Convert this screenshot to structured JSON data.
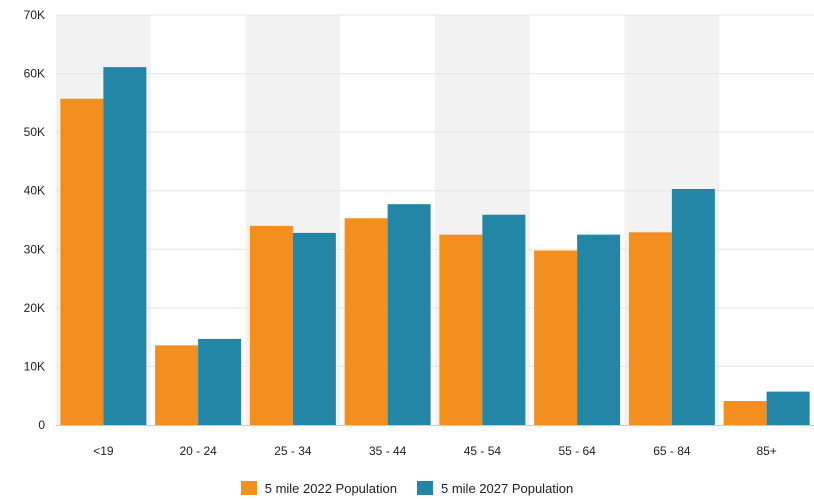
{
  "chart_data": {
    "type": "bar",
    "categories": [
      "<19",
      "20 - 24",
      "25 - 34",
      "35 - 44",
      "45 - 54",
      "55 - 64",
      "65 - 84",
      "85+"
    ],
    "series": [
      {
        "name": "5 mile 2022 Population",
        "color": "#f28f1e",
        "values": [
          55700,
          13600,
          34000,
          35300,
          32500,
          29800,
          32900,
          4100
        ]
      },
      {
        "name": "5 mile 2027 Population",
        "color": "#2386a6",
        "values": [
          61100,
          14700,
          32800,
          37700,
          35900,
          32500,
          40300,
          5700
        ]
      }
    ],
    "y_ticks": [
      "0",
      "10K",
      "20K",
      "30K",
      "40K",
      "50K",
      "60K",
      "70K"
    ],
    "ylim": [
      0,
      70000
    ],
    "grid": true,
    "legend_position": "bottom-center",
    "alternating_band_color": "#f2f2f2"
  }
}
